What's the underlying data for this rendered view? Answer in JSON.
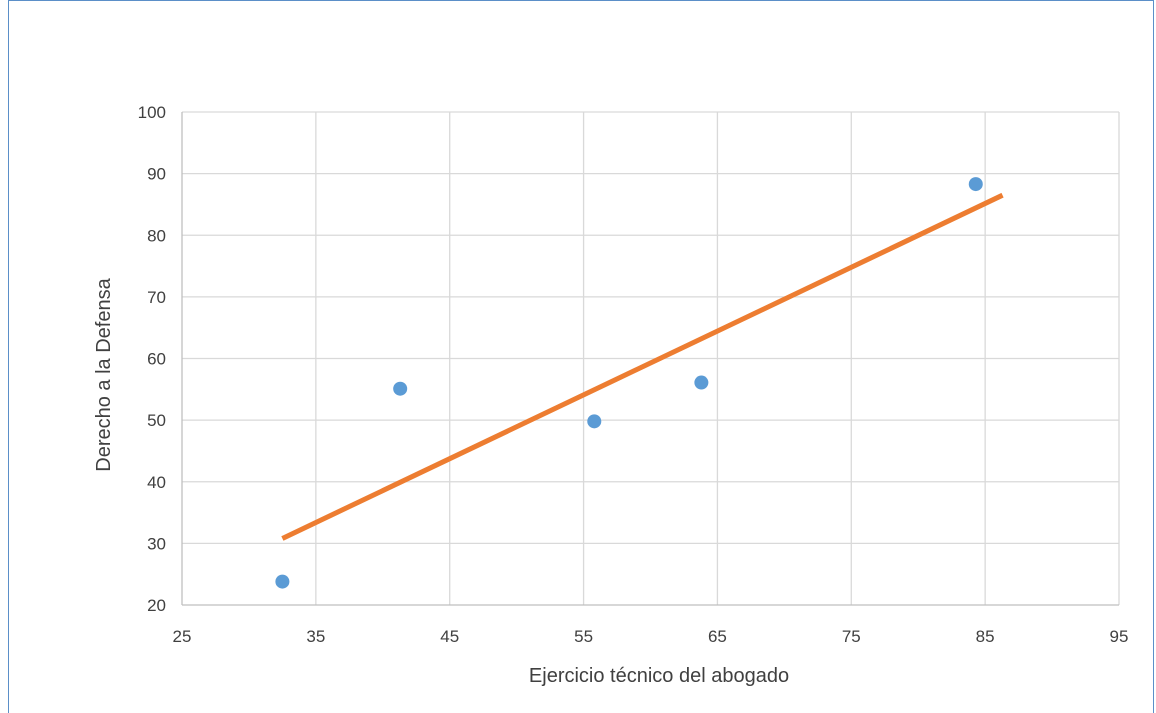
{
  "chart_data": {
    "type": "scatter",
    "title": "",
    "xlabel": "Ejercicio técnico del abogado",
    "ylabel": "Derecho a la Defensa",
    "xlim": [
      25,
      95
    ],
    "ylim": [
      20,
      100
    ],
    "x_ticks": [
      25,
      35,
      45,
      55,
      65,
      75,
      85,
      95
    ],
    "y_ticks": [
      20,
      30,
      40,
      50,
      60,
      70,
      80,
      90,
      100
    ],
    "grid": true,
    "legend": "none",
    "series": [
      {
        "x": [
          32.5,
          41.3,
          55.8,
          63.8,
          84.3
        ],
        "y": [
          23.8,
          55.1,
          49.8,
          56.1,
          88.3
        ],
        "color": "#5b9bd5"
      }
    ],
    "trendline": {
      "x": [
        32.5,
        86.3
      ],
      "y": [
        30.8,
        86.5
      ],
      "color": "#ed7d31"
    },
    "gridline_color": "#d9d9d9",
    "axis_line_color": "#bfbfbf"
  }
}
